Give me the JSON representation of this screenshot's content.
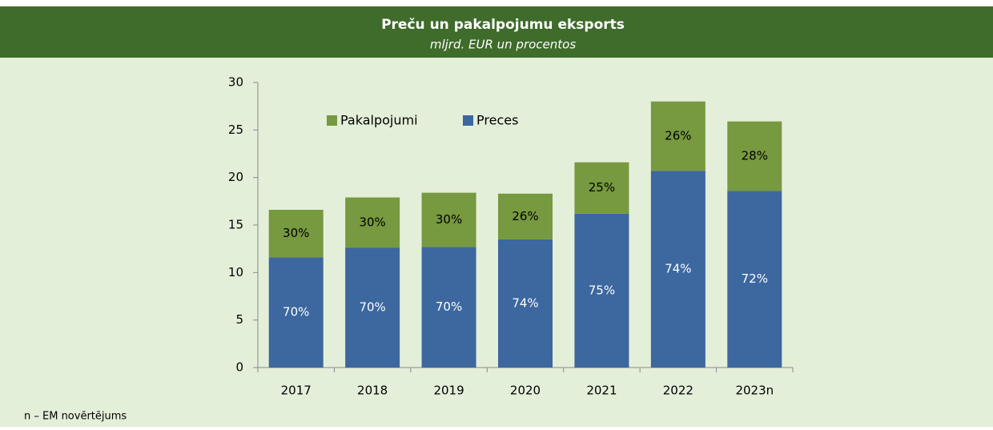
{
  "chart_data": {
    "type": "stacked_bar",
    "title": "Preču un pakalpojumu eksports",
    "subtitle": "mljrd. EUR un procentos",
    "categories": [
      "2017",
      "2018",
      "2019",
      "2020",
      "2021",
      "2022",
      "2023n"
    ],
    "series": [
      {
        "name": "Preces",
        "color": "#3c679f",
        "values": [
          11.6,
          12.6,
          12.7,
          13.5,
          16.2,
          20.7,
          18.6
        ],
        "shares": [
          {
            "value": 70,
            "label": "70%"
          },
          {
            "value": 70,
            "label": "70%"
          },
          {
            "value": 70,
            "label": "70%"
          },
          {
            "value": 74,
            "label": "74%"
          },
          {
            "value": 75,
            "label": "75%"
          },
          {
            "value": 74,
            "label": "74%"
          },
          {
            "value": 72,
            "label": "72%"
          }
        ]
      },
      {
        "name": "Pakalpojumi",
        "color": "#77993f",
        "values": [
          5.0,
          5.3,
          5.7,
          4.8,
          5.4,
          7.3,
          7.3
        ],
        "shares": [
          {
            "value": 30,
            "label": "30%"
          },
          {
            "value": 30,
            "label": "30%"
          },
          {
            "value": 30,
            "label": "30%"
          },
          {
            "value": 26,
            "label": "26%"
          },
          {
            "value": 25,
            "label": "25%"
          },
          {
            "value": 26,
            "label": "26%"
          },
          {
            "value": 28,
            "label": "28%"
          }
        ]
      }
    ],
    "ylim": [
      0,
      30
    ],
    "yticks": [
      0,
      5,
      10,
      15,
      20,
      25,
      30
    ],
    "legend": "top",
    "footnote": "n – EM novērtējums"
  }
}
